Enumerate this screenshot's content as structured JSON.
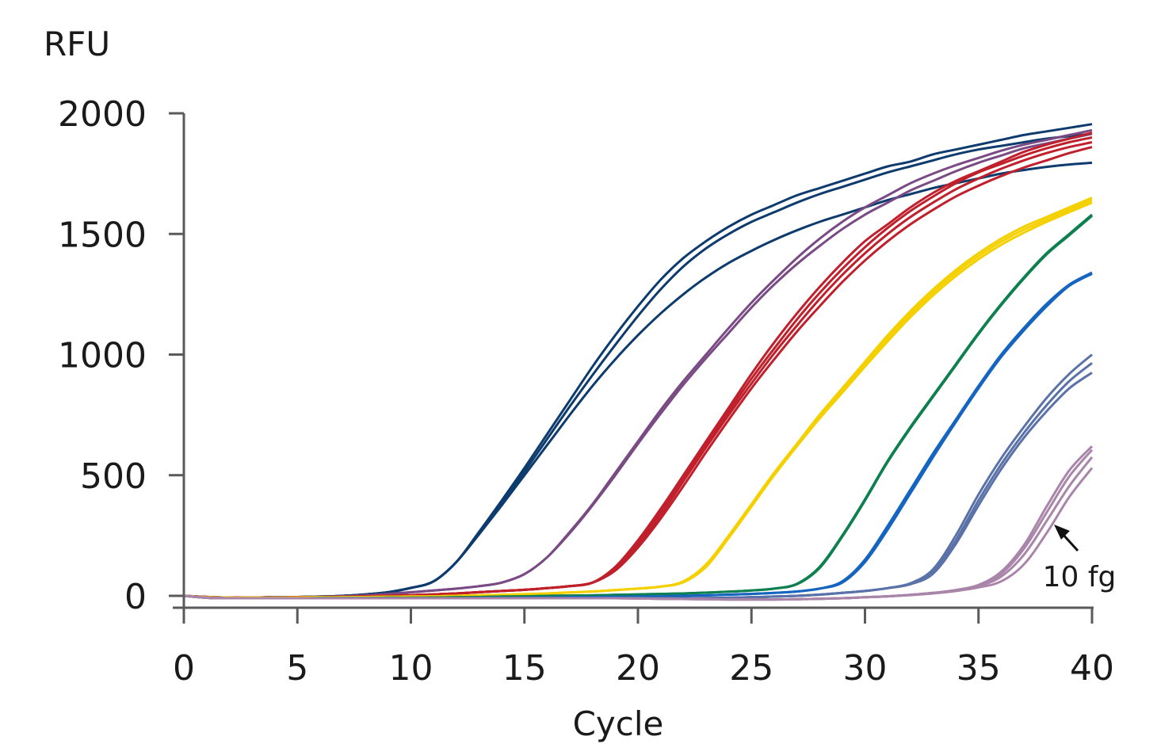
{
  "chart_data": {
    "type": "line",
    "title": "",
    "xlabel": "Cycle",
    "ylabel": "RFU",
    "xlim": [
      0,
      40
    ],
    "ylim": [
      0,
      2000
    ],
    "x_ticks": [
      "0",
      "5",
      "10",
      "15",
      "20",
      "25",
      "30",
      "35",
      "40"
    ],
    "y_ticks": [
      "0",
      "500",
      "1000",
      "1500",
      "2000"
    ],
    "grid": false,
    "legend": "none",
    "annotation": {
      "text": "10 fg",
      "points_to": [
        38.5,
        280
      ]
    },
    "x": [
      0,
      1,
      2,
      3,
      4,
      5,
      6,
      7,
      8,
      9,
      10,
      11,
      12,
      13,
      14,
      15,
      16,
      17,
      18,
      19,
      20,
      21,
      22,
      23,
      24,
      25,
      26,
      27,
      28,
      29,
      30,
      31,
      32,
      33,
      34,
      35,
      36,
      37,
      38,
      39,
      40
    ],
    "series": [
      {
        "color": "#0d3b6e",
        "values": [
          0,
          -5,
          -8,
          -7,
          -6,
          -5,
          -3,
          0,
          6,
          15,
          33,
          60,
          140,
          265,
          395,
          530,
          670,
          810,
          950,
          1080,
          1200,
          1310,
          1400,
          1470,
          1530,
          1580,
          1620,
          1660,
          1690,
          1720,
          1750,
          1780,
          1800,
          1830,
          1850,
          1870,
          1890,
          1910,
          1925,
          1940,
          1955
        ]
      },
      {
        "color": "#0d3b6e",
        "values": [
          0,
          -5,
          -8,
          -7,
          -6,
          -5,
          -3,
          0,
          6,
          15,
          33,
          60,
          140,
          260,
          385,
          515,
          650,
          785,
          915,
          1040,
          1160,
          1270,
          1365,
          1440,
          1500,
          1550,
          1590,
          1630,
          1665,
          1695,
          1725,
          1755,
          1780,
          1805,
          1830,
          1850,
          1865,
          1880,
          1895,
          1905,
          1915
        ]
      },
      {
        "color": "#0d3b6e",
        "values": [
          0,
          -5,
          -8,
          -7,
          -6,
          -5,
          -3,
          0,
          6,
          15,
          33,
          60,
          140,
          255,
          375,
          500,
          625,
          750,
          870,
          980,
          1080,
          1170,
          1250,
          1320,
          1380,
          1430,
          1475,
          1515,
          1550,
          1580,
          1610,
          1640,
          1665,
          1690,
          1710,
          1730,
          1750,
          1765,
          1778,
          1788,
          1795
        ]
      },
      {
        "color": "#7a4a85",
        "values": [
          0,
          -4,
          -7,
          -7,
          -6,
          -5,
          -4,
          -2,
          2,
          8,
          15,
          22,
          30,
          40,
          55,
          90,
          160,
          265,
          380,
          510,
          640,
          770,
          890,
          1000,
          1110,
          1215,
          1310,
          1400,
          1480,
          1550,
          1610,
          1660,
          1710,
          1750,
          1785,
          1815,
          1845,
          1870,
          1890,
          1910,
          1930
        ]
      },
      {
        "color": "#7a4a85",
        "values": [
          0,
          -4,
          -7,
          -7,
          -6,
          -5,
          -4,
          -2,
          2,
          8,
          15,
          22,
          30,
          40,
          55,
          90,
          160,
          260,
          375,
          500,
          630,
          755,
          875,
          985,
          1090,
          1195,
          1290,
          1375,
          1450,
          1520,
          1580,
          1630,
          1680,
          1720,
          1760,
          1795,
          1825,
          1855,
          1875,
          1895,
          1915
        ]
      },
      {
        "color": "#c0202b",
        "values": [
          0,
          -5,
          -7,
          -7,
          -7,
          -6,
          -5,
          -4,
          -2,
          0,
          3,
          6,
          10,
          15,
          20,
          25,
          32,
          40,
          55,
          120,
          230,
          360,
          500,
          640,
          780,
          920,
          1050,
          1170,
          1280,
          1380,
          1470,
          1540,
          1610,
          1670,
          1720,
          1760,
          1800,
          1840,
          1870,
          1895,
          1920
        ]
      },
      {
        "color": "#c0202b",
        "values": [
          0,
          -5,
          -7,
          -7,
          -7,
          -6,
          -5,
          -4,
          -2,
          0,
          3,
          6,
          10,
          15,
          20,
          25,
          32,
          40,
          55,
          115,
          220,
          350,
          490,
          630,
          765,
          900,
          1025,
          1145,
          1255,
          1355,
          1445,
          1525,
          1595,
          1655,
          1710,
          1755,
          1790,
          1825,
          1855,
          1880,
          1900
        ]
      },
      {
        "color": "#c0202b",
        "values": [
          0,
          -5,
          -7,
          -7,
          -7,
          -6,
          -5,
          -4,
          -2,
          0,
          3,
          6,
          10,
          15,
          20,
          25,
          32,
          40,
          55,
          110,
          210,
          335,
          475,
          615,
          750,
          880,
          1005,
          1120,
          1230,
          1330,
          1420,
          1500,
          1570,
          1630,
          1685,
          1730,
          1770,
          1805,
          1835,
          1860,
          1880
        ]
      },
      {
        "color": "#c0202b",
        "values": [
          0,
          -5,
          -7,
          -7,
          -7,
          -6,
          -5,
          -4,
          -2,
          0,
          3,
          6,
          10,
          15,
          20,
          25,
          32,
          40,
          55,
          105,
          200,
          320,
          455,
          595,
          730,
          860,
          980,
          1095,
          1200,
          1300,
          1390,
          1470,
          1540,
          1600,
          1655,
          1700,
          1740,
          1775,
          1805,
          1835,
          1860
        ]
      },
      {
        "color": "#f5d000",
        "values": [
          0,
          -6,
          -8,
          -8,
          -8,
          -7,
          -6,
          -6,
          -5,
          -4,
          -3,
          -2,
          0,
          2,
          4,
          7,
          10,
          14,
          18,
          24,
          30,
          38,
          60,
          130,
          250,
          380,
          510,
          630,
          750,
          860,
          970,
          1080,
          1180,
          1270,
          1350,
          1420,
          1480,
          1530,
          1570,
          1610,
          1650
        ]
      },
      {
        "color": "#f5d000",
        "values": [
          0,
          -6,
          -8,
          -8,
          -8,
          -7,
          -6,
          -6,
          -5,
          -4,
          -3,
          -2,
          0,
          2,
          4,
          7,
          10,
          14,
          18,
          24,
          30,
          38,
          58,
          125,
          245,
          375,
          505,
          625,
          742,
          850,
          960,
          1068,
          1168,
          1258,
          1338,
          1408,
          1468,
          1518,
          1560,
          1600,
          1640
        ]
      },
      {
        "color": "#f5d000",
        "values": [
          0,
          -6,
          -8,
          -8,
          -8,
          -7,
          -6,
          -6,
          -5,
          -4,
          -3,
          -2,
          0,
          2,
          4,
          7,
          10,
          14,
          18,
          24,
          30,
          38,
          56,
          120,
          240,
          370,
          500,
          620,
          735,
          842,
          950,
          1055,
          1155,
          1245,
          1325,
          1395,
          1455,
          1505,
          1550,
          1590,
          1630
        ]
      },
      {
        "color": "#0e7f4f",
        "values": [
          0,
          -8,
          -10,
          -10,
          -10,
          -10,
          -9,
          -9,
          -9,
          -8,
          -8,
          -7,
          -6,
          -5,
          -3,
          -2,
          0,
          1,
          2,
          4,
          6,
          8,
          10,
          13,
          17,
          22,
          30,
          50,
          120,
          250,
          400,
          560,
          700,
          830,
          960,
          1090,
          1210,
          1320,
          1420,
          1500,
          1580
        ]
      },
      {
        "color": "#0e7f4f",
        "values": [
          0,
          -8,
          -10,
          -10,
          -10,
          -10,
          -9,
          -9,
          -9,
          -8,
          -8,
          -7,
          -6,
          -5,
          -3,
          -2,
          0,
          1,
          2,
          4,
          6,
          8,
          10,
          13,
          17,
          22,
          30,
          48,
          115,
          245,
          395,
          555,
          695,
          825,
          955,
          1085,
          1205,
          1315,
          1415,
          1495,
          1575
        ]
      },
      {
        "color": "#1565c0",
        "values": [
          0,
          -8,
          -10,
          -10,
          -10,
          -10,
          -10,
          -10,
          -10,
          -10,
          -10,
          -10,
          -10,
          -9,
          -9,
          -8,
          -7,
          -6,
          -5,
          -4,
          -3,
          -2,
          0,
          2,
          5,
          8,
          12,
          18,
          30,
          60,
          150,
          290,
          440,
          590,
          730,
          870,
          1000,
          1110,
          1210,
          1290,
          1340
        ]
      },
      {
        "color": "#1565c0",
        "values": [
          0,
          -8,
          -10,
          -10,
          -10,
          -10,
          -10,
          -10,
          -10,
          -10,
          -10,
          -10,
          -10,
          -9,
          -9,
          -8,
          -7,
          -6,
          -5,
          -4,
          -3,
          -2,
          0,
          2,
          5,
          8,
          12,
          18,
          30,
          55,
          140,
          275,
          425,
          575,
          720,
          860,
          990,
          1100,
          1200,
          1285,
          1335
        ]
      },
      {
        "color": "#5a72a8",
        "values": [
          0,
          -8,
          -10,
          -10,
          -10,
          -10,
          -10,
          -10,
          -10,
          -10,
          -10,
          -10,
          -10,
          -10,
          -10,
          -10,
          -10,
          -10,
          -10,
          -10,
          -10,
          -10,
          -10,
          -9,
          -8,
          -6,
          -3,
          0,
          5,
          12,
          20,
          32,
          52,
          110,
          250,
          420,
          570,
          700,
          820,
          920,
          1000
        ]
      },
      {
        "color": "#5a72a8",
        "values": [
          0,
          -8,
          -10,
          -10,
          -10,
          -10,
          -10,
          -10,
          -10,
          -10,
          -10,
          -10,
          -10,
          -10,
          -10,
          -10,
          -10,
          -10,
          -10,
          -10,
          -10,
          -10,
          -10,
          -9,
          -8,
          -6,
          -3,
          0,
          5,
          12,
          20,
          32,
          50,
          100,
          230,
          395,
          545,
          675,
          790,
          890,
          965
        ]
      },
      {
        "color": "#5a72a8",
        "values": [
          0,
          -8,
          -10,
          -10,
          -10,
          -10,
          -10,
          -10,
          -10,
          -10,
          -10,
          -10,
          -10,
          -10,
          -10,
          -10,
          -10,
          -10,
          -10,
          -10,
          -10,
          -10,
          -10,
          -9,
          -8,
          -6,
          -3,
          0,
          5,
          12,
          20,
          32,
          48,
          92,
          215,
          375,
          525,
          655,
          765,
          860,
          925
        ]
      },
      {
        "color": "#a985a9",
        "values": [
          0,
          -8,
          -10,
          -10,
          -10,
          -10,
          -10,
          -10,
          -10,
          -10,
          -10,
          -10,
          -10,
          -10,
          -10,
          -10,
          -10,
          -10,
          -10,
          -10,
          -11,
          -12,
          -13,
          -14,
          -15,
          -15,
          -15,
          -14,
          -12,
          -10,
          -6,
          -2,
          4,
          12,
          24,
          45,
          100,
          210,
          370,
          520,
          620
        ]
      },
      {
        "color": "#a985a9",
        "values": [
          0,
          -8,
          -10,
          -10,
          -10,
          -10,
          -10,
          -10,
          -10,
          -10,
          -10,
          -10,
          -10,
          -10,
          -10,
          -10,
          -10,
          -10,
          -10,
          -10,
          -11,
          -12,
          -13,
          -14,
          -15,
          -15,
          -15,
          -14,
          -12,
          -10,
          -6,
          -2,
          4,
          12,
          24,
          43,
          92,
          195,
          345,
          495,
          605
        ]
      },
      {
        "color": "#a985a9",
        "values": [
          0,
          -8,
          -10,
          -10,
          -10,
          -10,
          -10,
          -10,
          -10,
          -10,
          -10,
          -10,
          -10,
          -10,
          -10,
          -10,
          -10,
          -10,
          -10,
          -10,
          -11,
          -12,
          -13,
          -14,
          -15,
          -15,
          -15,
          -14,
          -12,
          -10,
          -6,
          -2,
          4,
          12,
          22,
          40,
          80,
          170,
          310,
          455,
          575
        ]
      },
      {
        "color": "#a985a9",
        "values": [
          0,
          -8,
          -10,
          -10,
          -10,
          -10,
          -10,
          -10,
          -10,
          -10,
          -10,
          -10,
          -10,
          -10,
          -10,
          -10,
          -10,
          -10,
          -10,
          -10,
          -11,
          -12,
          -13,
          -14,
          -15,
          -15,
          -15,
          -14,
          -12,
          -10,
          -6,
          -2,
          3,
          10,
          20,
          35,
          60,
          130,
          260,
          410,
          530
        ]
      }
    ]
  }
}
